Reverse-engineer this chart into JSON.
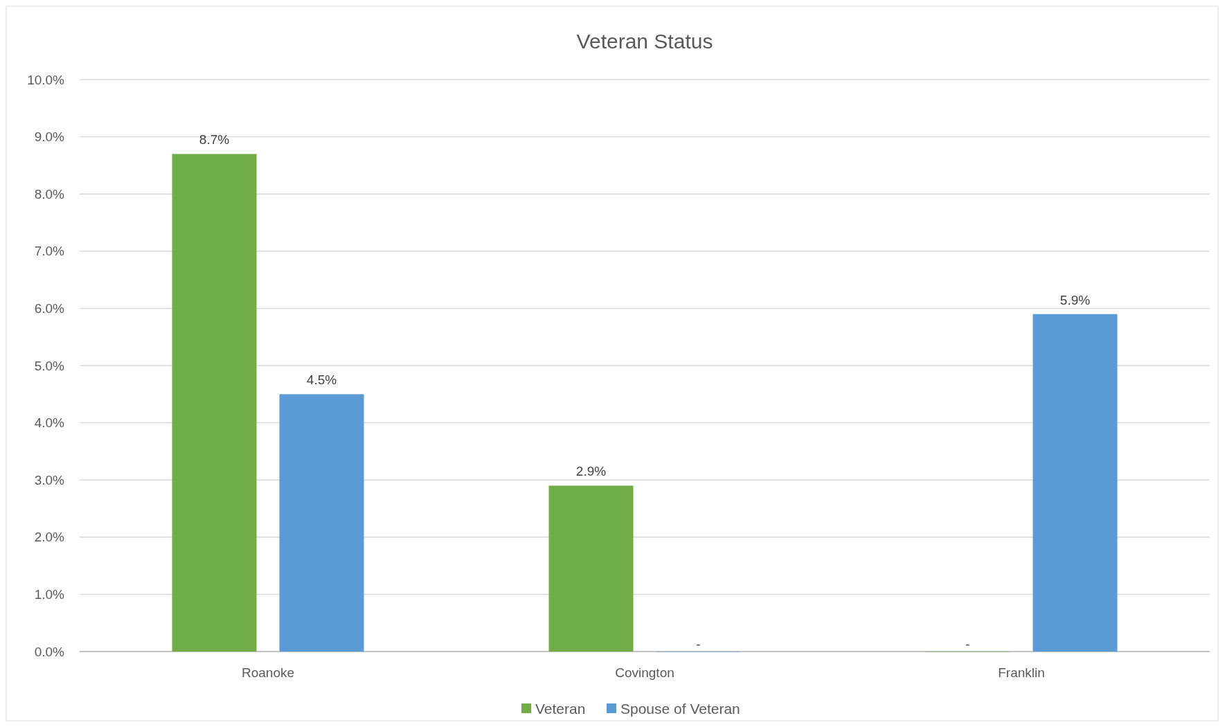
{
  "chart_data": {
    "type": "bar",
    "title": "Veteran Status",
    "categories": [
      "Roanoke",
      "Covington",
      "Franklin"
    ],
    "series": [
      {
        "name": "Veteran",
        "color": "#70ad47",
        "values": [
          8.7,
          2.9,
          0
        ],
        "value_labels": [
          "8.7%",
          "2.9%",
          "-"
        ]
      },
      {
        "name": "Spouse of Veteran",
        "color": "#5b9bd5",
        "values": [
          4.5,
          0,
          5.9
        ],
        "value_labels": [
          "4.5%",
          "-",
          "5.9%"
        ]
      }
    ],
    "ylim": [
      0,
      10
    ],
    "yticks": [
      {
        "value": 0,
        "label": "0.0%"
      },
      {
        "value": 1,
        "label": "1.0%"
      },
      {
        "value": 2,
        "label": "2.0%"
      },
      {
        "value": 3,
        "label": "3.0%"
      },
      {
        "value": 4,
        "label": "4.0%"
      },
      {
        "value": 5,
        "label": "5.0%"
      },
      {
        "value": 6,
        "label": "6.0%"
      },
      {
        "value": 7,
        "label": "7.0%"
      },
      {
        "value": 8,
        "label": "8.0%"
      },
      {
        "value": 9,
        "label": "9.0%"
      },
      {
        "value": 10,
        "label": "10.0%"
      }
    ],
    "grid": "y",
    "legend": "bottom"
  }
}
